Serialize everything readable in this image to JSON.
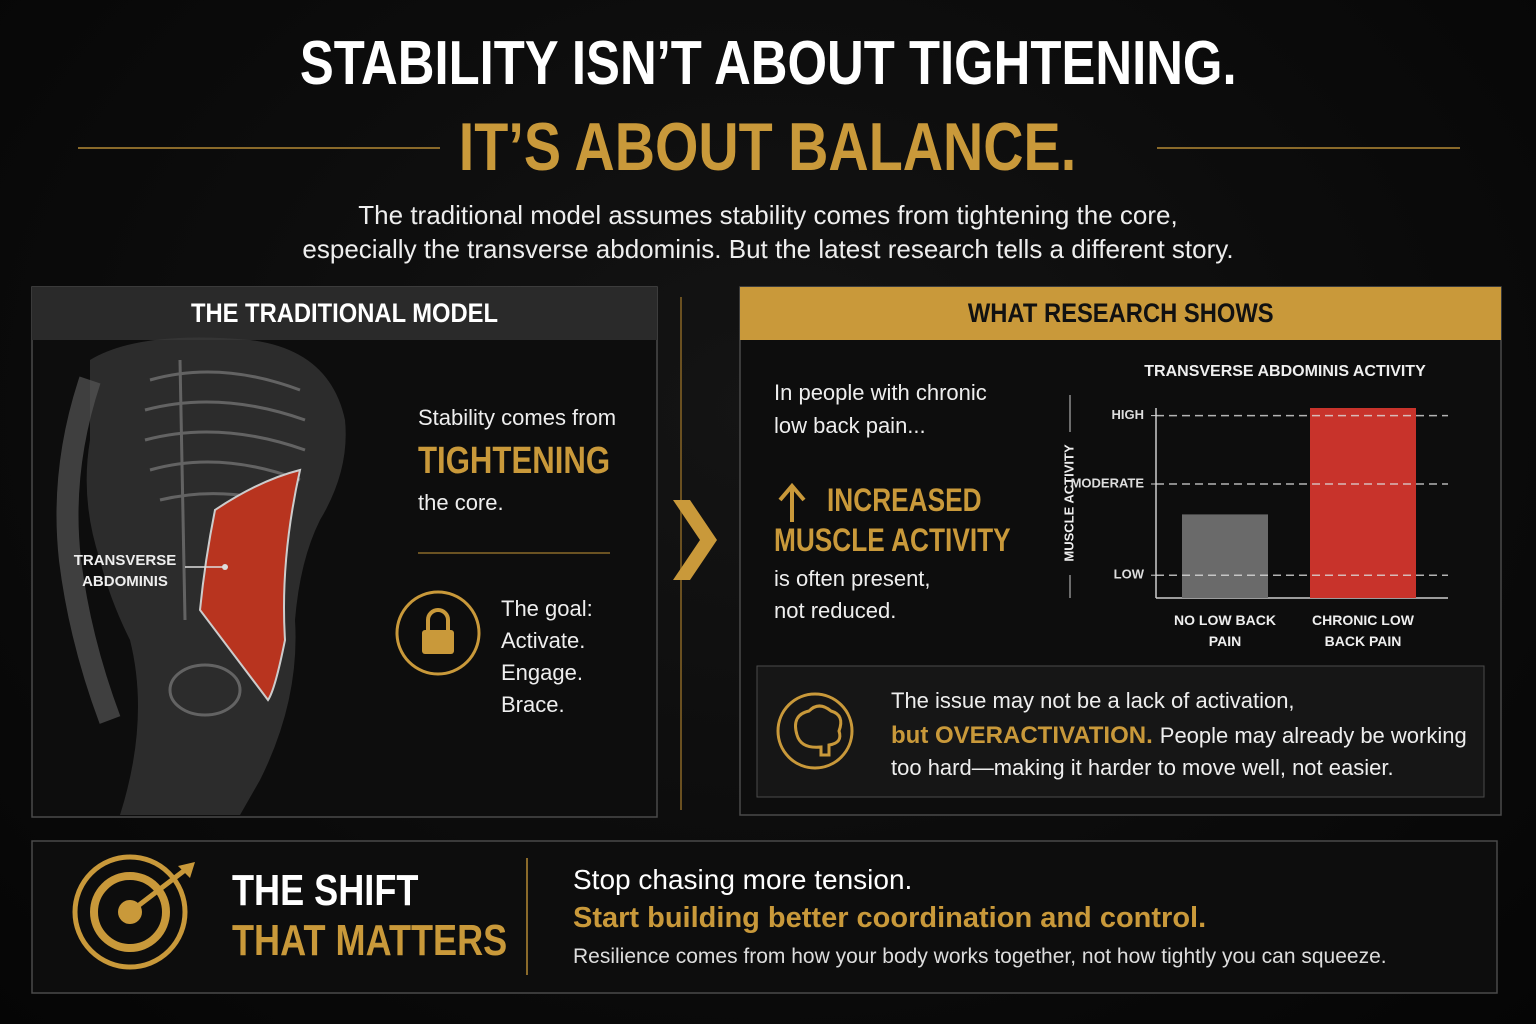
{
  "header": {
    "title_line1": "STABILITY ISN’T ABOUT TIGHTENING.",
    "title_line2": "IT’S ABOUT BALANCE.",
    "intro": [
      "The traditional model assumes stability comes from tightening the core,",
      "especially the transverse abdominis. But the latest research tells a different story."
    ]
  },
  "traditional": {
    "heading": "THE TRADITIONAL MODEL",
    "muscle_label": [
      "TRANSVERSE",
      "ABDOMINIS"
    ],
    "lead": "Stability comes from",
    "emphasis": "TIGHTENING",
    "tail": "the core.",
    "goal": [
      "The goal:",
      "Activate.",
      "Engage.",
      "Brace."
    ]
  },
  "research": {
    "heading": "WHAT RESEARCH SHOWS",
    "intro": [
      "In people with chronic",
      "low back pain..."
    ],
    "emphasis": [
      "INCREASED",
      "MUSCLE ACTIVITY"
    ],
    "tail": [
      "is often present,",
      "not reduced."
    ],
    "note": {
      "line1": "The issue may not be a lack of activation,",
      "emphasis": "but OVERACTIVATION.",
      "line2_rest": "People may already be working",
      "line3": "too hard—making it harder to move well, not easier."
    }
  },
  "chart_data": {
    "type": "bar",
    "title": "TRANSVERSE ABDOMINIS ACTIVITY",
    "y_label": "MUSCLE ACTIVITY",
    "categories": [
      "NO LOW BACK PAIN",
      "CHRONIC LOW BACK PAIN"
    ],
    "values": [
      44,
      100
    ],
    "colors": [
      "#6a6a6a",
      "#c8332b"
    ],
    "ylim": [
      0,
      100
    ],
    "yticks": [
      {
        "value": 12,
        "label": "LOW"
      },
      {
        "value": 60,
        "label": "MODERATE"
      },
      {
        "value": 96,
        "label": "HIGH"
      }
    ],
    "grid": true
  },
  "shift": {
    "heading": [
      "THE SHIFT",
      "THAT MATTERS"
    ],
    "line1": "Stop chasing more tension.",
    "line2": "Start building better coordination and control.",
    "line3": "Resilience comes from how your body works together, not how tightly you can squeeze."
  }
}
